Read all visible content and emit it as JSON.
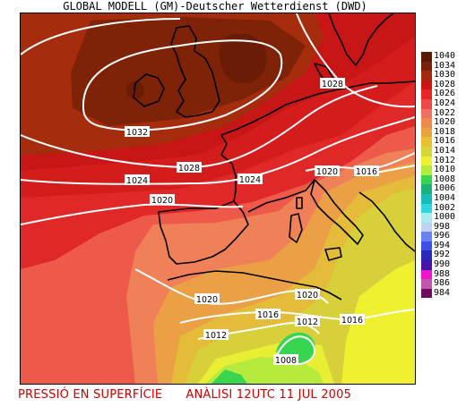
{
  "header": {
    "title": "GLOBAL MODELL (GM)-Deutscher Wetterdienst (DWD)"
  },
  "footer": {
    "left": "PRESSIÓ EN SUPERFÍCIE",
    "right": "ANÀLISI 12UTC 11 JUL 2005"
  },
  "legend": [
    {
      "label": "1040",
      "color": "#5a1a08"
    },
    {
      "label": "1034",
      "color": "#7a2208"
    },
    {
      "label": "1030",
      "color": "#a22a0c"
    },
    {
      "label": "1028",
      "color": "#cc1414"
    },
    {
      "label": "1026",
      "color": "#e62626"
    },
    {
      "label": "1024",
      "color": "#ef4848"
    },
    {
      "label": "1022",
      "color": "#f07060"
    },
    {
      "label": "1020",
      "color": "#ee8a50"
    },
    {
      "label": "1018",
      "color": "#e8a240"
    },
    {
      "label": "1016",
      "color": "#e8c030"
    },
    {
      "label": "1014",
      "color": "#d6d636"
    },
    {
      "label": "1012",
      "color": "#eef030"
    },
    {
      "label": "1010",
      "color": "#b4ec3c"
    },
    {
      "label": "1008",
      "color": "#38d650"
    },
    {
      "label": "1006",
      "color": "#1ab27a"
    },
    {
      "label": "1004",
      "color": "#16bcbc"
    },
    {
      "label": "1002",
      "color": "#2ed6e2"
    },
    {
      "label": "1000",
      "color": "#a8ecf2"
    },
    {
      "label": "998",
      "color": "#c0d2f2"
    },
    {
      "label": "996",
      "color": "#6a82f0"
    },
    {
      "label": "994",
      "color": "#3c50e6"
    },
    {
      "label": "992",
      "color": "#2a2ab8"
    },
    {
      "label": "990",
      "color": "#4216a8"
    },
    {
      "label": "988",
      "color": "#f016c8"
    },
    {
      "label": "986",
      "color": "#c056b0"
    },
    {
      "label": "984",
      "color": "#700c60"
    }
  ],
  "isobars": [
    {
      "label": "1032"
    },
    {
      "label": "1028"
    },
    {
      "label": "1028"
    },
    {
      "label": "1024"
    },
    {
      "label": "1024"
    },
    {
      "label": "1020"
    },
    {
      "label": "1020"
    },
    {
      "label": "1016"
    },
    {
      "label": "1020"
    },
    {
      "label": "1020"
    },
    {
      "label": "1016"
    },
    {
      "label": "1012"
    },
    {
      "label": "1016"
    },
    {
      "label": "1012"
    },
    {
      "label": "1008"
    }
  ]
}
